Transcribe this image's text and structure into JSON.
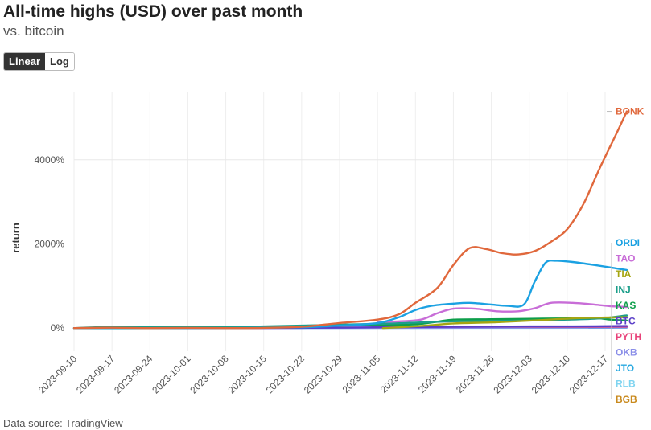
{
  "header": {
    "title": "All-time highs (USD) over past month",
    "subtitle": "vs. bitcoin"
  },
  "scale_toggle": {
    "linear_label": "Linear",
    "log_label": "Log",
    "selected": "Linear"
  },
  "footer": {
    "source": "Data source: TradingView"
  },
  "chart_data": {
    "type": "line",
    "title": "All-time highs (USD) over past month",
    "subtitle": "vs. bitcoin",
    "xlabel": "",
    "ylabel": "return",
    "ylim": [
      -550,
      5600
    ],
    "y_ticks": [
      0,
      2000,
      4000
    ],
    "y_tick_labels": [
      "0%",
      "2000%",
      "4000%"
    ],
    "x_ticks": [
      "2023-09-10",
      "2023-09-17",
      "2023-09-24",
      "2023-10-01",
      "2023-10-08",
      "2023-10-15",
      "2023-10-22",
      "2023-10-29",
      "2023-11-05",
      "2023-11-12",
      "2023-11-19",
      "2023-11-26",
      "2023-12-03",
      "2023-12-10",
      "2023-12-17"
    ],
    "grid": true,
    "series": [
      {
        "name": "BONK",
        "color": "#e0683c",
        "points": [
          [
            0,
            0
          ],
          [
            7,
            10
          ],
          [
            14,
            0
          ],
          [
            21,
            5
          ],
          [
            28,
            0
          ],
          [
            35,
            5
          ],
          [
            42,
            30
          ],
          [
            49,
            120
          ],
          [
            56,
            200
          ],
          [
            60,
            330
          ],
          [
            63,
            600
          ],
          [
            67,
            950
          ],
          [
            70,
            1500
          ],
          [
            73,
            1900
          ],
          [
            76,
            1880
          ],
          [
            79,
            1780
          ],
          [
            82,
            1750
          ],
          [
            85,
            1830
          ],
          [
            88,
            2050
          ],
          [
            91,
            2350
          ],
          [
            94,
            2950
          ],
          [
            97,
            3800
          ],
          [
            100,
            4600
          ],
          [
            102,
            5150
          ]
        ]
      },
      {
        "name": "ORDI",
        "color": "#1ba1e2",
        "points": [
          [
            0,
            0
          ],
          [
            14,
            0
          ],
          [
            28,
            0
          ],
          [
            42,
            20
          ],
          [
            49,
            60
          ],
          [
            56,
            120
          ],
          [
            60,
            260
          ],
          [
            63,
            430
          ],
          [
            66,
            530
          ],
          [
            70,
            580
          ],
          [
            73,
            600
          ],
          [
            77,
            560
          ],
          [
            80,
            530
          ],
          [
            83,
            560
          ],
          [
            85,
            1100
          ],
          [
            87,
            1550
          ],
          [
            89,
            1600
          ],
          [
            92,
            1570
          ],
          [
            96,
            1500
          ],
          [
            100,
            1420
          ],
          [
            102,
            1380
          ]
        ]
      },
      {
        "name": "TAO",
        "color": "#c86dd7",
        "points": [
          [
            56,
            150
          ],
          [
            60,
            160
          ],
          [
            64,
            200
          ],
          [
            67,
            350
          ],
          [
            70,
            460
          ],
          [
            74,
            460
          ],
          [
            78,
            400
          ],
          [
            82,
            400
          ],
          [
            85,
            470
          ],
          [
            88,
            600
          ],
          [
            92,
            600
          ],
          [
            96,
            560
          ],
          [
            99,
            520
          ],
          [
            102,
            500
          ]
        ]
      },
      {
        "name": "TIA",
        "color": "#a5a512",
        "points": [
          [
            57,
            0
          ],
          [
            60,
            20
          ],
          [
            65,
            60
          ],
          [
            70,
            110
          ],
          [
            78,
            140
          ],
          [
            86,
            190
          ],
          [
            92,
            230
          ],
          [
            98,
            250
          ],
          [
            102,
            260
          ]
        ]
      },
      {
        "name": "INJ",
        "color": "#1b9e8a",
        "points": [
          [
            0,
            0
          ],
          [
            7,
            30
          ],
          [
            14,
            20
          ],
          [
            21,
            25
          ],
          [
            28,
            20
          ],
          [
            35,
            40
          ],
          [
            42,
            60
          ],
          [
            49,
            80
          ],
          [
            56,
            100
          ],
          [
            63,
            130
          ],
          [
            70,
            160
          ],
          [
            77,
            170
          ],
          [
            84,
            180
          ],
          [
            91,
            200
          ],
          [
            97,
            230
          ],
          [
            102,
            300
          ]
        ]
      },
      {
        "name": "KAS",
        "color": "#0d9e4a",
        "points": [
          [
            0,
            0
          ],
          [
            14,
            0
          ],
          [
            28,
            10
          ],
          [
            42,
            40
          ],
          [
            49,
            60
          ],
          [
            56,
            70
          ],
          [
            63,
            90
          ],
          [
            67,
            150
          ],
          [
            70,
            200
          ],
          [
            77,
            210
          ],
          [
            84,
            220
          ],
          [
            91,
            230
          ],
          [
            96,
            240
          ],
          [
            99,
            200
          ],
          [
            102,
            180
          ]
        ]
      },
      {
        "name": "BTC",
        "color": "#5a3ec8",
        "points": [
          [
            0,
            0
          ],
          [
            14,
            0
          ],
          [
            28,
            0
          ],
          [
            42,
            5
          ],
          [
            56,
            20
          ],
          [
            70,
            30
          ],
          [
            84,
            40
          ],
          [
            92,
            40
          ],
          [
            102,
            50
          ]
        ]
      },
      {
        "name": "PYTH",
        "color": "#e8437a",
        "points": [
          [
            55,
            20
          ],
          [
            60,
            25
          ],
          [
            70,
            30
          ],
          [
            80,
            35
          ],
          [
            90,
            30
          ],
          [
            102,
            35
          ]
        ]
      },
      {
        "name": "OKB",
        "color": "#8a8ee8",
        "points": [
          [
            0,
            0
          ],
          [
            28,
            0
          ],
          [
            56,
            5
          ],
          [
            84,
            10
          ],
          [
            102,
            15
          ]
        ]
      },
      {
        "name": "JTO",
        "color": "#29a9e0",
        "points": [
          [
            95,
            10
          ],
          [
            98,
            12
          ],
          [
            102,
            15
          ]
        ]
      },
      {
        "name": "RLB",
        "color": "#7fd4f0",
        "points": [
          [
            40,
            0
          ],
          [
            70,
            5
          ],
          [
            102,
            8
          ]
        ]
      },
      {
        "name": "BGB",
        "color": "#c98a1e",
        "points": [
          [
            0,
            0
          ],
          [
            28,
            5
          ],
          [
            56,
            10
          ],
          [
            84,
            15
          ],
          [
            102,
            20
          ]
        ]
      }
    ]
  }
}
